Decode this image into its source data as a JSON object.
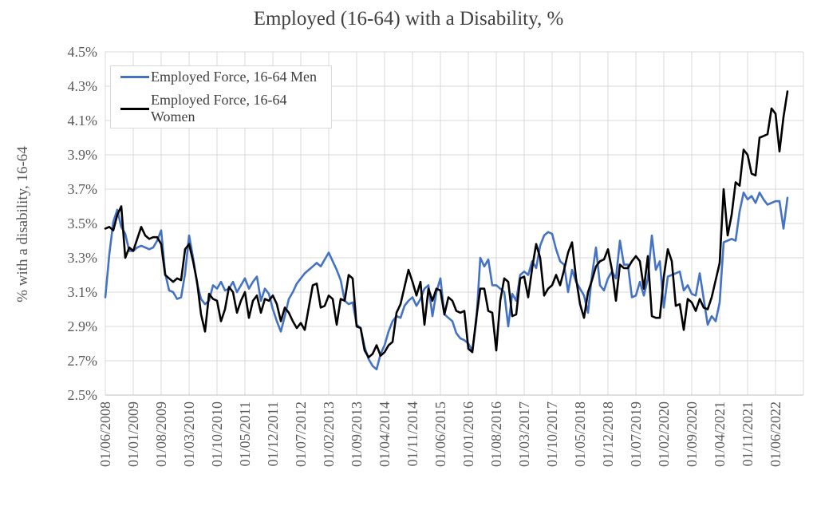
{
  "title": "Employed (16-64) with a Disability, %",
  "y_axis": {
    "label": "% with a disability, 16-64",
    "tick_labels": [
      "4.5%",
      "4.3%",
      "4.1%",
      "3.9%",
      "3.7%",
      "3.5%",
      "3.3%",
      "3.1%",
      "2.9%",
      "2.7%",
      "2.5%"
    ]
  },
  "x_axis": {
    "tick_labels": [
      "01/06/2008",
      "01/01/2009",
      "01/08/2009",
      "01/03/2010",
      "01/10/2010",
      "01/05/2011",
      "01/12/2011",
      "01/07/2012",
      "01/02/2013",
      "01/09/2013",
      "01/04/2014",
      "01/11/2014",
      "01/06/2015",
      "01/01/2016",
      "01/08/2016",
      "01/03/2017",
      "01/10/2017",
      "01/05/2018",
      "01/12/2018",
      "01/07/2019",
      "01/02/2020",
      "01/09/2020",
      "01/04/2021",
      "01/11/2021",
      "01/06/2022"
    ]
  },
  "legend": {
    "entries": [
      "Employed Force, 16-64 Men",
      "Employed Force, 16-64 Women"
    ]
  },
  "colors": {
    "men_line": "#4472C4",
    "women_line": "#000000",
    "gridline": "#d9d9d9",
    "axis_line": "#bfbfbf"
  },
  "chart_data": {
    "type": "line",
    "title": "Employed (16-64) with a Disability, %",
    "xlabel": "",
    "ylabel": "% with a disability, 16-64",
    "ylim": [
      2.5,
      4.5
    ],
    "ytick_step": 0.2,
    "ytick_labels_top_to_bottom": [
      "4.5%",
      "4.3%",
      "4.1%",
      "3.9%",
      "3.7%",
      "3.5%",
      "3.3%",
      "3.1%",
      "2.9%",
      "2.7%",
      "2.5%"
    ],
    "x_frequency": "monthly",
    "x_start": "2008-06",
    "x_end": "2022-09",
    "x_tick_every_n_months": 7,
    "x_tick_labels": [
      "01/06/2008",
      "01/01/2009",
      "01/08/2009",
      "01/03/2010",
      "01/10/2010",
      "01/05/2011",
      "01/12/2011",
      "01/07/2012",
      "01/02/2013",
      "01/09/2013",
      "01/04/2014",
      "01/11/2014",
      "01/06/2015",
      "01/01/2016",
      "01/08/2016",
      "01/03/2017",
      "01/10/2017",
      "01/05/2018",
      "01/12/2018",
      "01/07/2019",
      "01/02/2020",
      "01/09/2020",
      "01/04/2021",
      "01/11/2021",
      "01/06/2022"
    ],
    "grid": true,
    "legend_position": "top-left-inside",
    "units": "percent",
    "series": [
      {
        "name": "Employed Force, 16-64 Men",
        "color": "#4472C4",
        "values": [
          3.07,
          3.32,
          3.51,
          3.58,
          3.48,
          3.44,
          3.34,
          3.34,
          3.36,
          3.37,
          3.36,
          3.35,
          3.36,
          3.4,
          3.46,
          3.21,
          3.11,
          3.1,
          3.06,
          3.07,
          3.21,
          3.43,
          3.3,
          3.15,
          3.06,
          3.03,
          3.05,
          3.14,
          3.12,
          3.16,
          3.11,
          3.12,
          3.16,
          3.1,
          3.14,
          3.18,
          3.12,
          3.16,
          3.19,
          3.05,
          3.12,
          3.09,
          3.0,
          2.93,
          2.87,
          2.96,
          3.06,
          3.1,
          3.15,
          3.18,
          3.21,
          3.23,
          3.25,
          3.27,
          3.25,
          3.29,
          3.33,
          3.28,
          3.23,
          3.17,
          3.05,
          3.03,
          3.04,
          2.91,
          2.89,
          2.78,
          2.71,
          2.67,
          2.65,
          2.74,
          2.79,
          2.87,
          2.93,
          2.96,
          2.95,
          3.02,
          3.05,
          3.07,
          3.02,
          3.06,
          3.12,
          3.14,
          2.96,
          3.1,
          3.18,
          2.97,
          2.95,
          2.93,
          2.86,
          2.83,
          2.82,
          2.8,
          2.76,
          2.93,
          3.3,
          3.25,
          3.29,
          3.14,
          3.14,
          3.12,
          3.1,
          2.9,
          3.09,
          3.05,
          3.2,
          3.22,
          3.2,
          3.28,
          3.24,
          3.37,
          3.43,
          3.45,
          3.44,
          3.35,
          3.28,
          3.26,
          3.1,
          3.23,
          3.16,
          3.12,
          3.08,
          2.98,
          3.2,
          3.36,
          3.14,
          3.11,
          3.18,
          3.22,
          3.18,
          3.4,
          3.26,
          3.26,
          3.07,
          3.08,
          3.16,
          3.08,
          3.18,
          3.43,
          3.23,
          3.28,
          3.01,
          3.19,
          3.2,
          3.21,
          3.22,
          3.11,
          3.14,
          3.09,
          3.08,
          3.21,
          3.06,
          2.91,
          2.96,
          2.93,
          3.04,
          3.39,
          3.4,
          3.41,
          3.4,
          3.57,
          3.68,
          3.64,
          3.66,
          3.62,
          3.68,
          3.64,
          3.61,
          3.62,
          3.63,
          3.63,
          3.47,
          3.65
        ]
      },
      {
        "name": "Employed Force, 16-64 Women",
        "color": "#000000",
        "values": [
          3.47,
          3.48,
          3.46,
          3.55,
          3.6,
          3.3,
          3.36,
          3.34,
          3.41,
          3.48,
          3.43,
          3.41,
          3.42,
          3.42,
          3.38,
          3.2,
          3.18,
          3.16,
          3.18,
          3.17,
          3.35,
          3.38,
          3.28,
          3.16,
          2.97,
          2.87,
          3.09,
          3.06,
          3.05,
          2.93,
          3.0,
          3.13,
          3.1,
          2.98,
          3.05,
          3.1,
          2.95,
          3.05,
          3.08,
          2.98,
          3.06,
          3.05,
          3.08,
          3.03,
          2.93,
          3.01,
          2.98,
          2.93,
          2.89,
          2.92,
          2.88,
          3.01,
          3.14,
          3.15,
          3.01,
          3.02,
          3.08,
          3.06,
          2.91,
          3.06,
          3.05,
          3.2,
          3.18,
          2.9,
          2.89,
          2.76,
          2.72,
          2.74,
          2.79,
          2.73,
          2.75,
          2.79,
          2.81,
          2.98,
          3.03,
          3.13,
          3.23,
          3.16,
          3.08,
          3.16,
          2.91,
          3.12,
          3.05,
          3.12,
          3.11,
          2.97,
          3.07,
          3.05,
          2.99,
          2.98,
          2.99,
          2.77,
          2.75,
          2.95,
          3.12,
          3.12,
          2.99,
          2.98,
          2.76,
          3.05,
          3.18,
          3.16,
          2.96,
          2.97,
          3.18,
          3.19,
          3.07,
          3.24,
          3.38,
          3.3,
          3.08,
          3.12,
          3.14,
          3.2,
          3.14,
          3.23,
          3.33,
          3.39,
          3.18,
          3.03,
          2.95,
          3.1,
          3.17,
          3.25,
          3.28,
          3.29,
          3.35,
          3.23,
          3.05,
          3.26,
          3.24,
          3.24,
          3.28,
          3.31,
          3.28,
          3.12,
          3.31,
          2.96,
          2.95,
          2.95,
          3.19,
          3.35,
          3.28,
          3.02,
          3.03,
          2.88,
          3.06,
          3.04,
          2.99,
          3.06,
          3.01,
          3.0,
          3.07,
          3.17,
          3.27,
          3.7,
          3.43,
          3.55,
          3.74,
          3.72,
          3.93,
          3.9,
          3.79,
          3.78,
          4.0,
          4.01,
          4.02,
          4.17,
          4.14,
          3.92,
          4.12,
          4.27
        ]
      }
    ]
  }
}
